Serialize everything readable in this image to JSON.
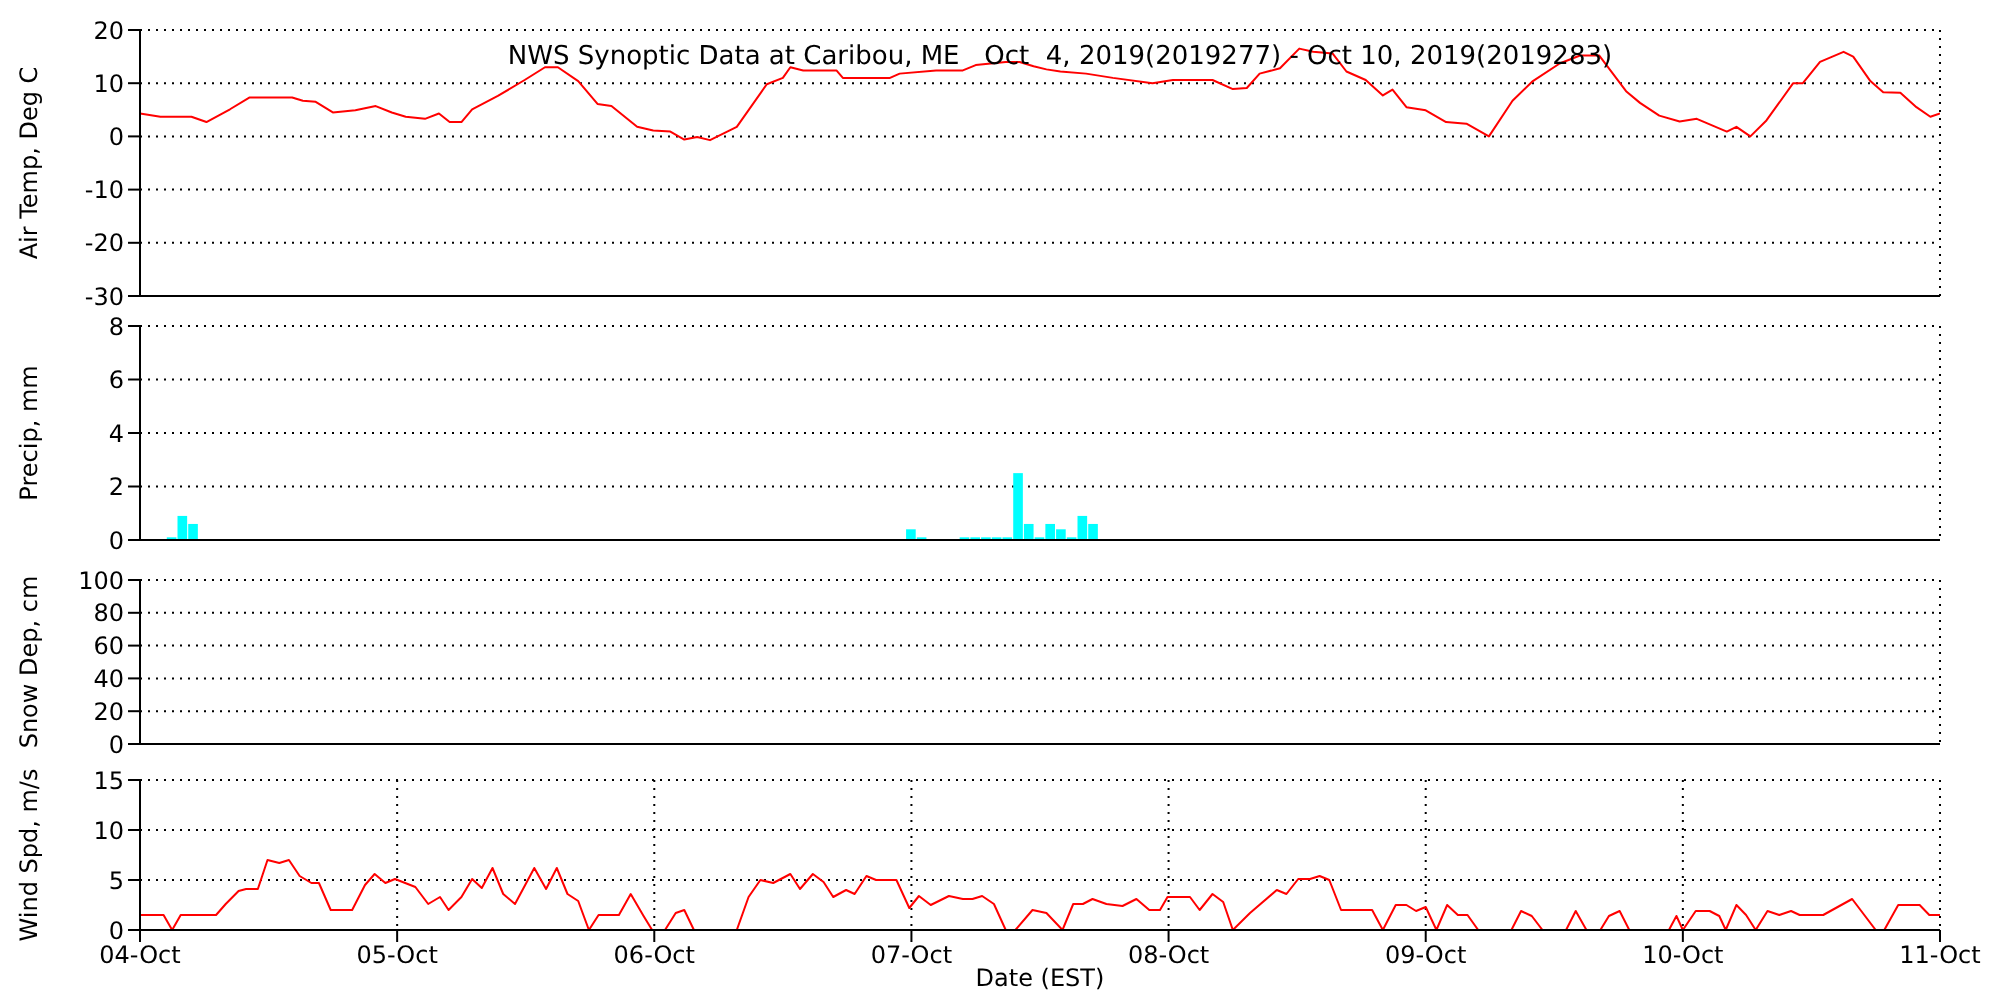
{
  "chart_data": [
    {
      "type": "line",
      "title": "NWS Synoptic Data at Caribou, ME   Oct  4, 2019(2019277) - Oct 10, 2019(2019283)",
      "ylabel": "Air Temp, Deg C",
      "color": "#ff0000",
      "marker": "none",
      "grid": true,
      "tick_labels": "y",
      "xlim": [
        "2019-10-04",
        "2019-10-11"
      ],
      "xticks": [
        {
          "value": "2019-10-04",
          "label": null
        },
        {
          "value": "2019-10-05",
          "label": null
        },
        {
          "value": "2019-10-06",
          "label": null
        },
        {
          "value": "2019-10-07",
          "label": null
        },
        {
          "value": "2019-10-08",
          "label": null
        },
        {
          "value": "2019-10-09",
          "label": null
        },
        {
          "value": "2019-10-10",
          "label": null
        },
        {
          "value": "2019-10-11",
          "label": null
        }
      ],
      "ylim": [
        -30,
        20
      ],
      "yticks": [
        -30,
        -20,
        -10,
        0,
        10,
        20
      ],
      "x": [
        "2019-10-04T00:00",
        "2019-10-04T01:54",
        "2019-10-04T04:48",
        "2019-10-04T06:12",
        "2019-10-04T08:24",
        "2019-10-04T10:12",
        "2019-10-04T14:12",
        "2019-10-04T15:12",
        "2019-10-04T16:24",
        "2019-10-04T18:00",
        "2019-10-04T20:06",
        "2019-10-04T22:00",
        "2019-10-04T23:30",
        "2019-10-05T00:48",
        "2019-10-05T02:36",
        "2019-10-05T03:54",
        "2019-10-05T04:54",
        "2019-10-05T06:00",
        "2019-10-05T07:00",
        "2019-10-05T09:24",
        "2019-10-05T11:54",
        "2019-10-05T13:48",
        "2019-10-05T15:00",
        "2019-10-05T16:54",
        "2019-10-05T18:42",
        "2019-10-05T20:00",
        "2019-10-05T22:24",
        "2019-10-05T23:54",
        "2019-10-06T01:30",
        "2019-10-06T02:48",
        "2019-10-06T04:00",
        "2019-10-06T05:12",
        "2019-10-06T07:42",
        "2019-10-06T10:30",
        "2019-10-06T12:00",
        "2019-10-06T12:42",
        "2019-10-06T13:54",
        "2019-10-06T17:00",
        "2019-10-06T17:36",
        "2019-10-06T22:00",
        "2019-10-06T22:54",
        "2019-10-07T02:18",
        "2019-10-07T04:48",
        "2019-10-07T06:00",
        "2019-10-07T08:48",
        "2019-10-07T10:06",
        "2019-10-07T11:24",
        "2019-10-07T12:36",
        "2019-10-07T13:54",
        "2019-10-07T16:18",
        "2019-10-07T18:48",
        "2019-10-07T22:30",
        "2019-10-08T00:24",
        "2019-10-08T04:06",
        "2019-10-08T06:00",
        "2019-10-08T07:18",
        "2019-10-08T08:30",
        "2019-10-08T10:24",
        "2019-10-08T12:12",
        "2019-10-08T13:30",
        "2019-10-08T15:18",
        "2019-10-08T16:36",
        "2019-10-08T18:24",
        "2019-10-08T20:00",
        "2019-10-08T20:54",
        "2019-10-08T22:12",
        "2019-10-09T00:00",
        "2019-10-09T01:54",
        "2019-10-09T03:48",
        "2019-10-09T05:54",
        "2019-10-09T08:06",
        "2019-10-09T10:00",
        "2019-10-09T12:30",
        "2019-10-09T14:24",
        "2019-10-09T16:12",
        "2019-10-09T18:42",
        "2019-10-09T20:00",
        "2019-10-09T21:48",
        "2019-10-09T23:42",
        "2019-10-10T01:18",
        "2019-10-10T04:06",
        "2019-10-10T05:00",
        "2019-10-10T06:18",
        "2019-10-10T07:48",
        "2019-10-10T10:18",
        "2019-10-10T11:12",
        "2019-10-10T12:48",
        "2019-10-10T15:00",
        "2019-10-10T15:54",
        "2019-10-10T17:30",
        "2019-10-10T18:42",
        "2019-10-10T20:18",
        "2019-10-10T21:48",
        "2019-10-10T23:06",
        "2019-10-11T00:00"
      ],
      "values": [
        4.3,
        3.7,
        3.7,
        2.7,
        5.1,
        7.3,
        7.3,
        6.7,
        6.5,
        4.5,
        4.9,
        5.7,
        4.5,
        3.7,
        3.3,
        4.3,
        2.7,
        2.7,
        5.1,
        7.6,
        10.6,
        13,
        13,
        10.4,
        6.1,
        5.7,
        1.8,
        1.1,
        0.9,
        -0.6,
        -0.1,
        -0.7,
        1.8,
        9.8,
        11,
        13,
        12.4,
        12.4,
        11,
        11,
        11.8,
        12.4,
        12.4,
        13.4,
        14,
        14,
        13.2,
        12.6,
        12.2,
        11.8,
        11,
        10,
        10.6,
        10.6,
        8.9,
        9.1,
        11.8,
        12.8,
        16.5,
        15.9,
        15.6,
        12.2,
        10.6,
        7.7,
        8.8,
        5.5,
        4.9,
        2.7,
        2.4,
        0,
        6.7,
        10.4,
        13.7,
        15.2,
        15.2,
        8.5,
        6.3,
        3.9,
        2.8,
        3.3,
        0.9,
        1.8,
        0,
        3,
        10,
        10,
        14,
        15.9,
        15,
        10.4,
        8.3,
        8.2,
        5.5,
        3.7,
        4.3
      ]
    },
    {
      "type": "bar",
      "ylabel": "Precip, mm",
      "color": "#00ffff",
      "grid": true,
      "tick_labels": "y",
      "xlim": [
        "2019-10-04",
        "2019-10-11"
      ],
      "xticks": [
        {
          "value": "2019-10-04",
          "label": null
        },
        {
          "value": "2019-10-05",
          "label": null
        },
        {
          "value": "2019-10-06",
          "label": null
        },
        {
          "value": "2019-10-07",
          "label": null
        },
        {
          "value": "2019-10-08",
          "label": null
        },
        {
          "value": "2019-10-09",
          "label": null
        },
        {
          "value": "2019-10-10",
          "label": null
        },
        {
          "value": "2019-10-11",
          "label": null
        }
      ],
      "ylim": [
        0,
        8
      ],
      "yticks": [
        0,
        2,
        4,
        6,
        8
      ],
      "x": [
        "2019-10-04T03:00",
        "2019-10-04T04:00",
        "2019-10-04T05:00",
        "2019-10-07T00:00",
        "2019-10-07T01:00",
        "2019-10-07T05:00",
        "2019-10-07T06:00",
        "2019-10-07T07:00",
        "2019-10-07T08:00",
        "2019-10-07T09:00",
        "2019-10-07T10:00",
        "2019-10-07T11:00",
        "2019-10-07T12:00",
        "2019-10-07T13:00",
        "2019-10-07T14:00",
        "2019-10-07T15:00",
        "2019-10-07T16:00",
        "2019-10-07T17:00"
      ],
      "values": [
        0.1,
        0.9,
        0.6,
        0.4,
        0.1,
        0.1,
        0.1,
        0.1,
        0.1,
        0.1,
        2.5,
        0.6,
        0.1,
        0.6,
        0.4,
        0.1,
        0.9,
        0.6
      ]
    },
    {
      "type": "line",
      "ylabel": "Snow Dep, cm",
      "grid": true,
      "tick_labels": "y",
      "xlim": [
        "2019-10-04",
        "2019-10-11"
      ],
      "xticks": [
        {
          "value": "2019-10-04",
          "label": null
        },
        {
          "value": "2019-10-05",
          "label": null
        },
        {
          "value": "2019-10-06",
          "label": null
        },
        {
          "value": "2019-10-07",
          "label": null
        },
        {
          "value": "2019-10-08",
          "label": null
        },
        {
          "value": "2019-10-09",
          "label": null
        },
        {
          "value": "2019-10-10",
          "label": null
        },
        {
          "value": "2019-10-11",
          "label": null
        }
      ],
      "ylim": [
        0,
        100
      ],
      "yticks": [
        0,
        20,
        40,
        60,
        80,
        100
      ]
    },
    {
      "type": "line",
      "ylabel": "Wind Spd, m/s",
      "xlabel": "Date (EST)",
      "color": "#ff0000",
      "marker": "none",
      "grid": true,
      "xlim": [
        "2019-10-04",
        "2019-10-11"
      ],
      "xticks": [
        {
          "value": "2019-10-04",
          "label": "04-Oct"
        },
        {
          "value": "2019-10-05",
          "label": "05-Oct"
        },
        {
          "value": "2019-10-06",
          "label": "06-Oct"
        },
        {
          "value": "2019-10-07",
          "label": "07-Oct"
        },
        {
          "value": "2019-10-08",
          "label": "08-Oct"
        },
        {
          "value": "2019-10-09",
          "label": "09-Oct"
        },
        {
          "value": "2019-10-10",
          "label": "10-Oct"
        },
        {
          "value": "2019-10-11",
          "label": "11-Oct"
        }
      ],
      "ylim": [
        0,
        15
      ],
      "yticks": [
        0,
        5,
        10,
        15
      ],
      "x": [
        "2019-10-04T00:00",
        "2019-10-04T02:12",
        "2019-10-04T03:00",
        "2019-10-04T03:48",
        "2019-10-04T07:06",
        "2019-10-04T08:00",
        "2019-10-04T09:12",
        "2019-10-04T09:54",
        "2019-10-04T11:00",
        "2019-10-04T11:54",
        "2019-10-04T13:00",
        "2019-10-04T13:54",
        "2019-10-04T14:54",
        "2019-10-04T16:00",
        "2019-10-04T16:42",
        "2019-10-04T17:48",
        "2019-10-04T19:48",
        "2019-10-04T21:00",
        "2019-10-04T21:54",
        "2019-10-04T22:54",
        "2019-10-04T23:48",
        "2019-10-05T01:42",
        "2019-10-05T02:54",
        "2019-10-05T04:00",
        "2019-10-05T04:48",
        "2019-10-05T06:00",
        "2019-10-05T07:00",
        "2019-10-05T07:54",
        "2019-10-05T08:54",
        "2019-10-05T09:54",
        "2019-10-05T11:00",
        "2019-10-05T12:48",
        "2019-10-05T13:54",
        "2019-10-05T14:54",
        "2019-10-05T15:54",
        "2019-10-05T16:54",
        "2019-10-05T17:54",
        "2019-10-05T18:48",
        "2019-10-05T20:42",
        "2019-10-05T21:48",
        "2019-10-05T23:00",
        "2019-10-05T23:48",
        "2019-10-06T01:00",
        "2019-10-06T02:00",
        "2019-10-06T02:48",
        "2019-10-06T03:42",
        "2019-10-06T07:42",
        "2019-10-06T08:48",
        "2019-10-06T09:54",
        "2019-10-06T11:06",
        "2019-10-06T12:42",
        "2019-10-06T13:36",
        "2019-10-06T14:48",
        "2019-10-06T15:48",
        "2019-10-06T16:42",
        "2019-10-06T17:54",
        "2019-10-06T18:42",
        "2019-10-06T19:48",
        "2019-10-06T20:42",
        "2019-10-06T22:36",
        "2019-10-06T23:48",
        "2019-10-07T00:42",
        "2019-10-07T01:48",
        "2019-10-07T03:30",
        "2019-10-07T04:48",
        "2019-10-07T05:42",
        "2019-10-07T06:36",
        "2019-10-07T07:42",
        "2019-10-07T08:48",
        "2019-10-07T09:42",
        "2019-10-07T11:18",
        "2019-10-07T12:36",
        "2019-10-07T14:06",
        "2019-10-07T15:06",
        "2019-10-07T16:00",
        "2019-10-07T16:54",
        "2019-10-07T18:12",
        "2019-10-07T19:42",
        "2019-10-07T21:00",
        "2019-10-07T22:12",
        "2019-10-07T23:12",
        "2019-10-07T23:54",
        "2019-10-08T02:00",
        "2019-10-08T02:54",
        "2019-10-08T04:06",
        "2019-10-08T05:06",
        "2019-10-08T06:00",
        "2019-10-08T07:36",
        "2019-10-08T10:06",
        "2019-10-08T11:00",
        "2019-10-08T12:06",
        "2019-10-08T13:12",
        "2019-10-08T14:06",
        "2019-10-08T15:00",
        "2019-10-08T16:06",
        "2019-10-08T19:00",
        "2019-10-08T20:00",
        "2019-10-08T21:12",
        "2019-10-08T22:12",
        "2019-10-08T23:06",
        "2019-10-09T00:00",
        "2019-10-09T01:00",
        "2019-10-09T02:00",
        "2019-10-09T03:00",
        "2019-10-09T03:54",
        "2019-10-09T04:54",
        "2019-10-09T08:00",
        "2019-10-09T08:54",
        "2019-10-09T09:54",
        "2019-10-09T10:54",
        "2019-10-09T13:06",
        "2019-10-09T14:00",
        "2019-10-09T15:00",
        "2019-10-09T16:18",
        "2019-10-09T17:06",
        "2019-10-09T18:06",
        "2019-10-09T19:00",
        "2019-10-09T22:42",
        "2019-10-09T23:24",
        "2019-10-10T00:00",
        "2019-10-10T01:12",
        "2019-10-10T02:30",
        "2019-10-10T03:24",
        "2019-10-10T04:00",
        "2019-10-10T05:00",
        "2019-10-10T05:54",
        "2019-10-10T06:48",
        "2019-10-10T07:54",
        "2019-10-10T09:00",
        "2019-10-10T10:06",
        "2019-10-10T10:54",
        "2019-10-10T13:06",
        "2019-10-10T15:48",
        "2019-10-10T18:00",
        "2019-10-10T18:48",
        "2019-10-10T20:06",
        "2019-10-10T22:06",
        "2019-10-10T23:00",
        "2019-10-11T00:00"
      ],
      "values": [
        1.5,
        1.5,
        0,
        1.5,
        1.5,
        2.6,
        3.9,
        4.1,
        4.1,
        7,
        6.7,
        7,
        5.4,
        4.7,
        4.7,
        2,
        2,
        4.5,
        5.6,
        4.7,
        5.1,
        4.3,
        2.6,
        3.3,
        2,
        3.3,
        5.1,
        4.2,
        6.2,
        3.6,
        2.6,
        6.2,
        4.1,
        6.2,
        3.6,
        2.9,
        0,
        1.5,
        1.5,
        3.6,
        1.4,
        0,
        0,
        1.7,
        2,
        0,
        0,
        3.3,
        5,
        4.7,
        5.6,
        4.1,
        5.6,
        4.8,
        3.3,
        4,
        3.6,
        5.4,
        5,
        5,
        2.2,
        3.4,
        2.5,
        3.4,
        3.1,
        3.1,
        3.4,
        2.6,
        0,
        0,
        2,
        1.7,
        0,
        2.6,
        2.6,
        3.1,
        2.6,
        2.4,
        3.1,
        2,
        2,
        3.3,
        3.3,
        2,
        3.6,
        2.8,
        0,
        1.7,
        4,
        3.6,
        5.1,
        5.1,
        5.4,
        5,
        2,
        2,
        0,
        2.5,
        2.5,
        1.9,
        2.3,
        0,
        2.5,
        1.5,
        1.5,
        0,
        0,
        1.9,
        1.4,
        0,
        0,
        1.9,
        0,
        0,
        1.4,
        1.9,
        0,
        0,
        1.4,
        0,
        1.9,
        1.9,
        1.4,
        0,
        2.5,
        1.5,
        0,
        1.9,
        1.5,
        1.9,
        1.5,
        1.5,
        3.1,
        0,
        0,
        2.5,
        2.5,
        1.5,
        1.5
      ]
    }
  ]
}
